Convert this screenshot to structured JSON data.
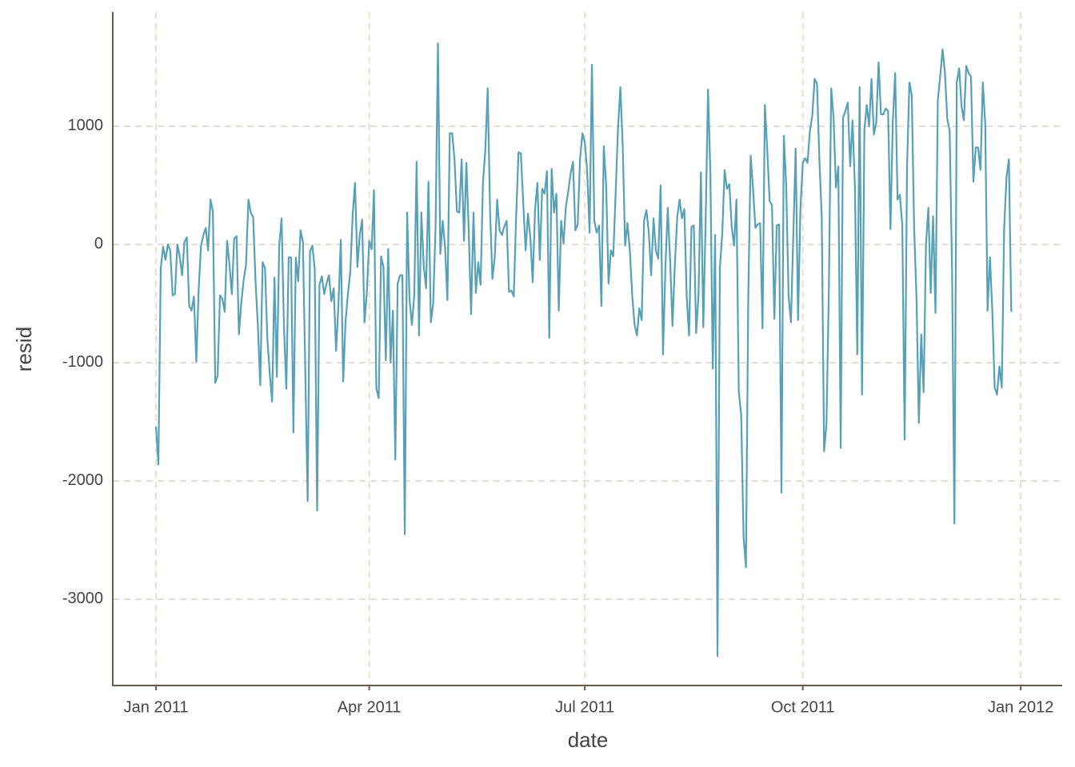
{
  "chart_data": {
    "type": "line",
    "x_label": "date",
    "y_label": "resid",
    "xlim": [
      -18.25,
      382.5
    ],
    "ylim": [
      -3730,
      1966
    ],
    "xticks": [
      {
        "value": 0,
        "label": "Jan 2011"
      },
      {
        "value": 90,
        "label": "Apr 2011"
      },
      {
        "value": 181,
        "label": "Jul 2011"
      },
      {
        "value": 273,
        "label": "Oct 2011"
      },
      {
        "value": 365,
        "label": "Jan 2012"
      }
    ],
    "yticks": [
      -3000,
      -2000,
      -1000,
      0,
      1000
    ],
    "grid": true,
    "x": [
      0,
      1,
      2,
      3,
      4,
      5,
      6,
      7,
      8,
      9,
      10,
      11,
      12,
      13,
      14,
      15,
      16,
      17,
      18,
      19,
      20,
      21,
      22,
      23,
      24,
      25,
      26,
      27,
      28,
      29,
      30,
      31,
      32,
      33,
      34,
      35,
      36,
      37,
      38,
      39,
      40,
      41,
      42,
      43,
      44,
      45,
      46,
      47,
      48,
      49,
      50,
      51,
      52,
      53,
      54,
      55,
      56,
      57,
      58,
      59,
      60,
      61,
      62,
      63,
      64,
      65,
      66,
      67,
      68,
      69,
      70,
      71,
      72,
      73,
      74,
      75,
      76,
      77,
      78,
      79,
      80,
      81,
      82,
      83,
      84,
      85,
      86,
      87,
      88,
      89,
      90,
      91,
      92,
      93,
      94,
      95,
      96,
      97,
      98,
      99,
      100,
      101,
      102,
      103,
      104,
      105,
      106,
      107,
      108,
      109,
      110,
      111,
      112,
      113,
      114,
      115,
      116,
      117,
      118,
      119,
      120,
      121,
      122,
      123,
      124,
      125,
      126,
      127,
      128,
      129,
      130,
      131,
      132,
      133,
      134,
      135,
      136,
      137,
      138,
      139,
      140,
      141,
      142,
      143,
      144,
      145,
      146,
      147,
      148,
      149,
      150,
      151,
      152,
      153,
      154,
      155,
      156,
      157,
      158,
      159,
      160,
      161,
      162,
      163,
      164,
      165,
      166,
      167,
      168,
      169,
      170,
      171,
      172,
      173,
      174,
      175,
      176,
      177,
      178,
      179,
      180,
      181,
      182,
      183,
      184,
      185,
      186,
      187,
      188,
      189,
      190,
      191,
      192,
      193,
      194,
      195,
      196,
      197,
      198,
      199,
      200,
      201,
      202,
      203,
      204,
      205,
      206,
      207,
      208,
      209,
      210,
      211,
      212,
      213,
      214,
      215,
      216,
      217,
      218,
      219,
      220,
      221,
      222,
      223,
      224,
      225,
      226,
      227,
      228,
      229,
      230,
      231,
      232,
      233,
      234,
      235,
      236,
      237,
      238,
      239,
      240,
      241,
      242,
      243,
      244,
      245,
      246,
      247,
      248,
      249,
      250,
      251,
      252,
      253,
      254,
      255,
      256,
      257,
      258,
      259,
      260,
      261,
      262,
      263,
      264,
      265,
      266,
      267,
      268,
      269,
      270,
      271,
      272,
      273,
      274,
      275,
      276,
      277,
      278,
      279,
      280,
      281,
      282,
      283,
      284,
      285,
      286,
      287,
      288,
      289,
      290,
      291,
      292,
      293,
      294,
      295,
      296,
      297,
      298,
      299,
      300,
      301,
      302,
      303,
      304,
      305,
      306,
      307,
      308,
      309,
      310,
      311,
      312,
      313,
      314,
      315,
      316,
      317,
      318,
      319,
      320,
      321,
      322,
      323,
      324,
      325,
      326,
      327,
      328,
      329,
      330,
      331,
      332,
      333,
      334,
      335,
      336,
      337,
      338,
      339,
      340,
      341,
      342,
      343,
      344,
      345,
      346,
      347,
      348,
      349,
      350,
      351,
      352,
      353,
      354,
      355,
      356,
      357,
      358,
      359,
      360,
      361
    ],
    "series": [
      {
        "name": "resid",
        "color": "#56a0b8",
        "values": [
          -1540,
          -1860,
          -200,
          -20,
          -130,
          0,
          -50,
          -430,
          -420,
          0,
          -100,
          -260,
          20,
          60,
          -520,
          -560,
          -440,
          -990,
          -380,
          -10,
          80,
          140,
          -50,
          380,
          280,
          -1170,
          -1110,
          -430,
          -460,
          -570,
          30,
          -170,
          -420,
          50,
          70,
          -760,
          -490,
          -300,
          -170,
          380,
          270,
          230,
          -310,
          -690,
          -1190,
          -150,
          -200,
          -800,
          -1090,
          -1330,
          -280,
          -1120,
          -10,
          220,
          -690,
          -1220,
          -110,
          -110,
          -1590,
          -110,
          -310,
          120,
          20,
          -1060,
          -2170,
          -60,
          -10,
          -210,
          -2250,
          -340,
          -270,
          -420,
          -330,
          -260,
          -480,
          -370,
          -900,
          -510,
          40,
          -1160,
          -650,
          -420,
          -230,
          250,
          520,
          -190,
          80,
          210,
          -660,
          -400,
          30,
          -40,
          460,
          -1220,
          -1300,
          -100,
          -190,
          -980,
          -40,
          -1000,
          -560,
          -1820,
          -330,
          -260,
          -260,
          -2450,
          270,
          -460,
          -680,
          -430,
          700,
          -770,
          270,
          -180,
          -370,
          530,
          -660,
          -500,
          150,
          1700,
          -80,
          200,
          -20,
          -470,
          940,
          940,
          720,
          280,
          270,
          720,
          30,
          690,
          110,
          -590,
          270,
          -410,
          -150,
          -340,
          520,
          800,
          1320,
          280,
          -290,
          -100,
          380,
          120,
          80,
          150,
          200,
          -400,
          -390,
          -440,
          230,
          780,
          770,
          350,
          -50,
          260,
          60,
          -320,
          300,
          520,
          -130,
          470,
          430,
          620,
          -790,
          640,
          270,
          430,
          -560,
          200,
          10,
          320,
          450,
          600,
          700,
          120,
          170,
          730,
          940,
          860,
          620,
          100,
          1520,
          200,
          100,
          160,
          -520,
          830,
          500,
          -330,
          -50,
          -100,
          430,
          980,
          1330,
          830,
          -10,
          180,
          -50,
          -430,
          -680,
          -770,
          -540,
          -640,
          200,
          290,
          100,
          -260,
          220,
          -50,
          -120,
          500,
          -930,
          -200,
          310,
          -130,
          -690,
          -170,
          230,
          380,
          220,
          300,
          -440,
          -770,
          150,
          160,
          -750,
          -420,
          610,
          -700,
          200,
          1310,
          600,
          -1050,
          80,
          -3480,
          -200,
          90,
          630,
          470,
          510,
          150,
          -10,
          380,
          -1250,
          -1440,
          -2470,
          -2730,
          -430,
          750,
          470,
          140,
          170,
          180,
          -710,
          1180,
          800,
          370,
          330,
          -630,
          160,
          170,
          -2100,
          920,
          500,
          -430,
          -660,
          80,
          810,
          -640,
          300,
          690,
          730,
          690,
          960,
          1090,
          1400,
          1360,
          720,
          230,
          -1750,
          -1520,
          -380,
          1320,
          1070,
          480,
          660,
          -1720,
          1070,
          1130,
          1200,
          660,
          1050,
          490,
          -930,
          1330,
          -1270,
          970,
          1180,
          1000,
          1400,
          930,
          1030,
          1540,
          1100,
          1100,
          1150,
          1130,
          130,
          1040,
          1450,
          380,
          420,
          160,
          -1650,
          650,
          1370,
          1260,
          140,
          -460,
          -1510,
          -760,
          -1250,
          0,
          310,
          -410,
          240,
          -580,
          1220,
          1420,
          1650,
          1450,
          1060,
          960,
          -210,
          -2360,
          1370,
          1490,
          1170,
          1050,
          1510,
          1450,
          1420,
          530,
          820,
          820,
          630,
          1370,
          1020,
          -560,
          -110,
          -560,
          -1210,
          -1270,
          -1030,
          -1210,
          140,
          570,
          720,
          -570
        ]
      }
    ]
  }
}
